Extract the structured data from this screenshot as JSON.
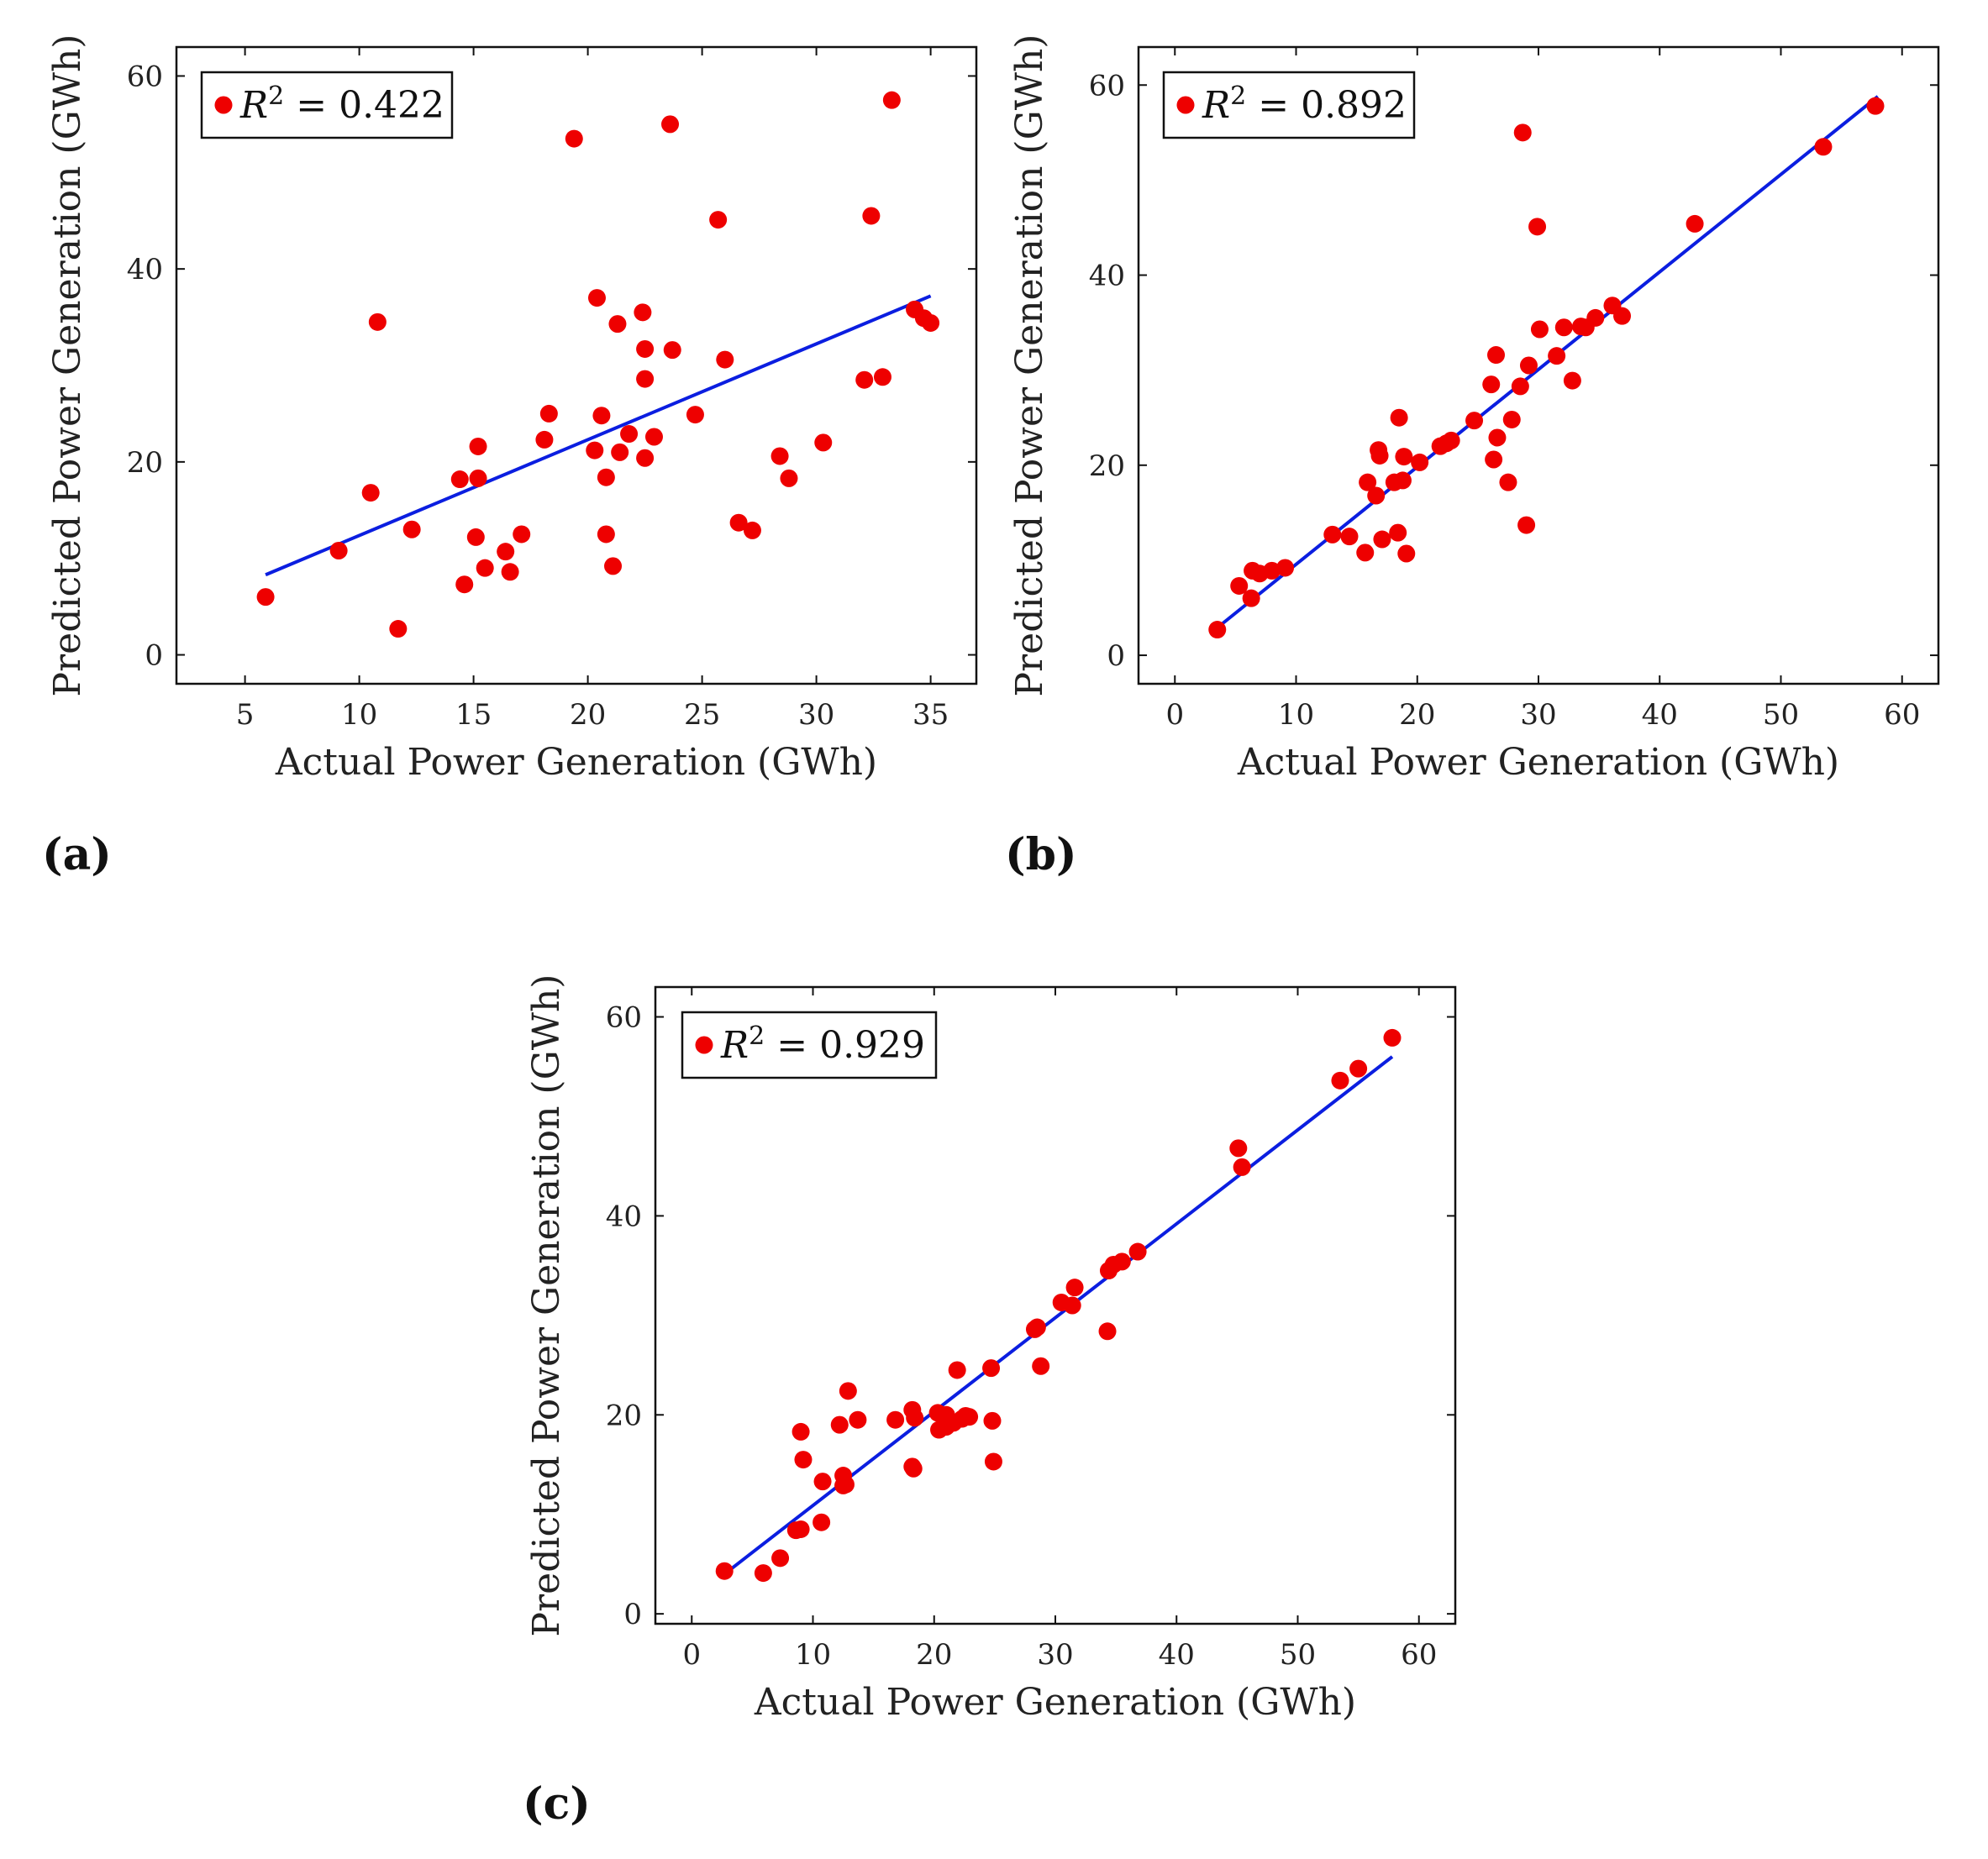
{
  "colors": {
    "points": "#ee0000",
    "fit": "#0b1ee0",
    "axes": "#111111"
  },
  "chart_data": [
    {
      "type": "scatter",
      "panel_label": "(a)",
      "legend_label": "0.422",
      "xlabel": "Actual Power Generation (GWh)",
      "ylabel": "Predicted Power Generation (GWh)",
      "xlim": [
        2,
        37
      ],
      "ylim": [
        -3,
        63
      ],
      "xticks": [
        5,
        10,
        15,
        20,
        25,
        30,
        35
      ],
      "yticks": [
        0,
        20,
        40,
        60
      ],
      "fit_line": [
        [
          5.9,
          8.3
        ],
        [
          35.0,
          37.2
        ]
      ],
      "points": [
        [
          5.9,
          6.0
        ],
        [
          9.1,
          10.8
        ],
        [
          10.5,
          16.8
        ],
        [
          10.8,
          34.5
        ],
        [
          11.7,
          2.7
        ],
        [
          12.3,
          13.0
        ],
        [
          14.4,
          18.2
        ],
        [
          14.6,
          7.3
        ],
        [
          15.1,
          12.2
        ],
        [
          15.2,
          21.6
        ],
        [
          15.2,
          18.3
        ],
        [
          15.5,
          9.0
        ],
        [
          16.4,
          10.7
        ],
        [
          16.6,
          8.6
        ],
        [
          17.1,
          12.5
        ],
        [
          18.1,
          22.3
        ],
        [
          18.3,
          25.0
        ],
        [
          19.4,
          53.5
        ],
        [
          20.3,
          21.2
        ],
        [
          20.4,
          37.0
        ],
        [
          20.6,
          24.8
        ],
        [
          20.8,
          18.4
        ],
        [
          20.8,
          12.5
        ],
        [
          21.1,
          9.2
        ],
        [
          21.3,
          34.3
        ],
        [
          21.4,
          21.0
        ],
        [
          21.8,
          22.9
        ],
        [
          22.4,
          35.5
        ],
        [
          22.5,
          31.7
        ],
        [
          22.5,
          28.6
        ],
        [
          22.5,
          20.4
        ],
        [
          22.9,
          22.6
        ],
        [
          23.6,
          55.0
        ],
        [
          23.7,
          31.6
        ],
        [
          24.7,
          24.9
        ],
        [
          25.7,
          45.1
        ],
        [
          26.0,
          30.6
        ],
        [
          26.6,
          13.7
        ],
        [
          27.2,
          12.9
        ],
        [
          28.4,
          20.6
        ],
        [
          28.8,
          18.3
        ],
        [
          30.3,
          22.0
        ],
        [
          32.1,
          28.5
        ],
        [
          32.4,
          45.5
        ],
        [
          32.9,
          28.8
        ],
        [
          33.3,
          57.5
        ],
        [
          34.3,
          35.8
        ],
        [
          34.7,
          34.9
        ],
        [
          35.0,
          34.4
        ]
      ]
    },
    {
      "type": "scatter",
      "panel_label": "(b)",
      "legend_label": "0.892",
      "xlabel": "Actual Power Generation (GWh)",
      "ylabel": "Predicted Power Generation (GWh)",
      "xlim": [
        -3,
        63
      ],
      "ylim": [
        -3,
        64
      ],
      "xticks": [
        0,
        10,
        20,
        30,
        40,
        50,
        60
      ],
      "yticks": [
        0,
        20,
        40,
        60
      ],
      "fit_line": [
        [
          3.5,
          2.9
        ],
        [
          58.0,
          58.8
        ]
      ],
      "points": [
        [
          3.5,
          2.7
        ],
        [
          5.3,
          7.3
        ],
        [
          6.3,
          6.0
        ],
        [
          6.4,
          8.9
        ],
        [
          7.0,
          8.6
        ],
        [
          8.0,
          8.9
        ],
        [
          9.1,
          9.2
        ],
        [
          13.0,
          12.7
        ],
        [
          14.4,
          12.5
        ],
        [
          15.7,
          10.8
        ],
        [
          15.9,
          18.2
        ],
        [
          16.6,
          16.8
        ],
        [
          16.8,
          21.6
        ],
        [
          16.9,
          21.0
        ],
        [
          17.1,
          12.2
        ],
        [
          18.1,
          18.2
        ],
        [
          18.4,
          12.9
        ],
        [
          18.5,
          25.0
        ],
        [
          18.8,
          18.4
        ],
        [
          18.9,
          20.9
        ],
        [
          19.1,
          10.7
        ],
        [
          20.2,
          20.3
        ],
        [
          21.9,
          22.0
        ],
        [
          22.4,
          22.3
        ],
        [
          22.8,
          22.6
        ],
        [
          24.7,
          24.7
        ],
        [
          26.1,
          28.5
        ],
        [
          26.3,
          20.6
        ],
        [
          26.5,
          31.6
        ],
        [
          26.6,
          22.9
        ],
        [
          27.5,
          18.2
        ],
        [
          27.8,
          24.8
        ],
        [
          28.5,
          28.3
        ],
        [
          28.7,
          55.0
        ],
        [
          29.0,
          13.7
        ],
        [
          29.2,
          30.5
        ],
        [
          29.9,
          45.1
        ],
        [
          30.1,
          34.3
        ],
        [
          31.5,
          31.5
        ],
        [
          32.1,
          34.5
        ],
        [
          32.8,
          28.9
        ],
        [
          33.5,
          34.6
        ],
        [
          33.9,
          34.5
        ],
        [
          34.7,
          35.5
        ],
        [
          36.1,
          36.8
        ],
        [
          36.9,
          35.7
        ],
        [
          42.9,
          45.4
        ],
        [
          53.5,
          53.5
        ],
        [
          57.8,
          57.8
        ]
      ]
    },
    {
      "type": "scatter",
      "panel_label": "(c)",
      "legend_label": "0.929",
      "xlabel": "Actual Power Generation (GWh)",
      "ylabel": "Predicted Power Generation (GWh)",
      "xlim": [
        -3,
        63
      ],
      "ylim": [
        -1,
        63
      ],
      "xticks": [
        0,
        10,
        20,
        30,
        40,
        50,
        60
      ],
      "yticks": [
        0,
        20,
        40,
        60
      ],
      "fit_line": [
        [
          2.7,
          4.0
        ],
        [
          57.8,
          56.0
        ]
      ],
      "points": [
        [
          2.7,
          4.3
        ],
        [
          5.9,
          4.1
        ],
        [
          7.3,
          5.6
        ],
        [
          8.6,
          8.4
        ],
        [
          9.0,
          8.5
        ],
        [
          9.0,
          18.3
        ],
        [
          9.2,
          15.5
        ],
        [
          10.7,
          9.2
        ],
        [
          10.8,
          13.3
        ],
        [
          12.2,
          19.0
        ],
        [
          12.5,
          13.9
        ],
        [
          12.5,
          12.9
        ],
        [
          12.7,
          13.0
        ],
        [
          12.9,
          22.4
        ],
        [
          13.7,
          19.5
        ],
        [
          16.8,
          19.5
        ],
        [
          18.2,
          20.5
        ],
        [
          18.2,
          14.8
        ],
        [
          18.3,
          14.6
        ],
        [
          18.4,
          19.7
        ],
        [
          20.3,
          20.2
        ],
        [
          20.4,
          18.5
        ],
        [
          21.0,
          20.0
        ],
        [
          21.0,
          18.8
        ],
        [
          21.6,
          19.2
        ],
        [
          21.9,
          24.5
        ],
        [
          22.3,
          19.6
        ],
        [
          22.6,
          19.9
        ],
        [
          22.9,
          19.8
        ],
        [
          24.7,
          24.7
        ],
        [
          24.8,
          19.4
        ],
        [
          24.9,
          15.3
        ],
        [
          28.3,
          28.6
        ],
        [
          28.5,
          28.8
        ],
        [
          28.8,
          24.9
        ],
        [
          30.5,
          31.3
        ],
        [
          31.4,
          31.0
        ],
        [
          31.6,
          32.8
        ],
        [
          34.3,
          28.4
        ],
        [
          34.4,
          34.5
        ],
        [
          34.8,
          35.1
        ],
        [
          35.5,
          35.4
        ],
        [
          36.8,
          36.4
        ],
        [
          45.1,
          46.8
        ],
        [
          45.4,
          44.9
        ],
        [
          53.5,
          53.6
        ],
        [
          55.0,
          54.8
        ],
        [
          57.8,
          57.9
        ]
      ]
    }
  ]
}
